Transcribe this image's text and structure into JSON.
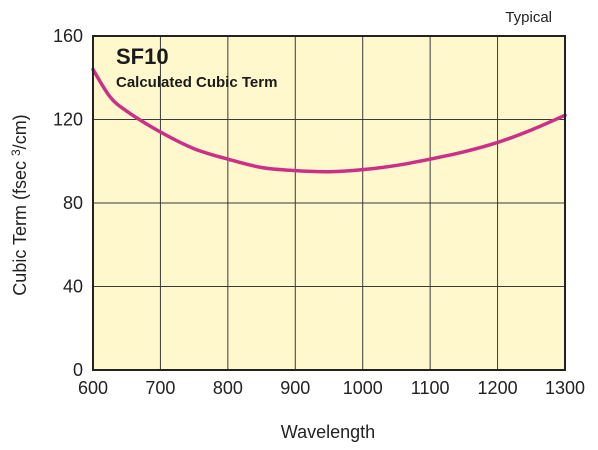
{
  "chart_data": {
    "type": "line",
    "title": "SF10",
    "subtitle": "Calculated Cubic Term",
    "note": "Typical",
    "xlabel": "Wavelength",
    "ylabel_main": "Cubic Term (fsec ",
    "ylabel_sup": "3",
    "ylabel_end": "/cm)",
    "xlim": [
      600,
      1300
    ],
    "ylim": [
      0,
      160
    ],
    "xticks": [
      "600",
      "700",
      "800",
      "900",
      "1000",
      "1100",
      "1200",
      "1300"
    ],
    "yticks": [
      "0",
      "40",
      "80",
      "120",
      "160"
    ],
    "grid": true,
    "series": [
      {
        "x": [
          600,
          625,
          650,
          700,
          750,
          800,
          850,
          900,
          950,
          1000,
          1050,
          1100,
          1150,
          1200,
          1250,
          1300
        ],
        "y": [
          144,
          131,
          124,
          114,
          106,
          101,
          97,
          95.5,
          95,
          96,
          98,
          101,
          104.5,
          109,
          115,
          122
        ]
      }
    ],
    "colors": {
      "plot_bg": "#FFF8CC",
      "line": "#CC2F87",
      "grid": "#3a3a3a"
    }
  }
}
